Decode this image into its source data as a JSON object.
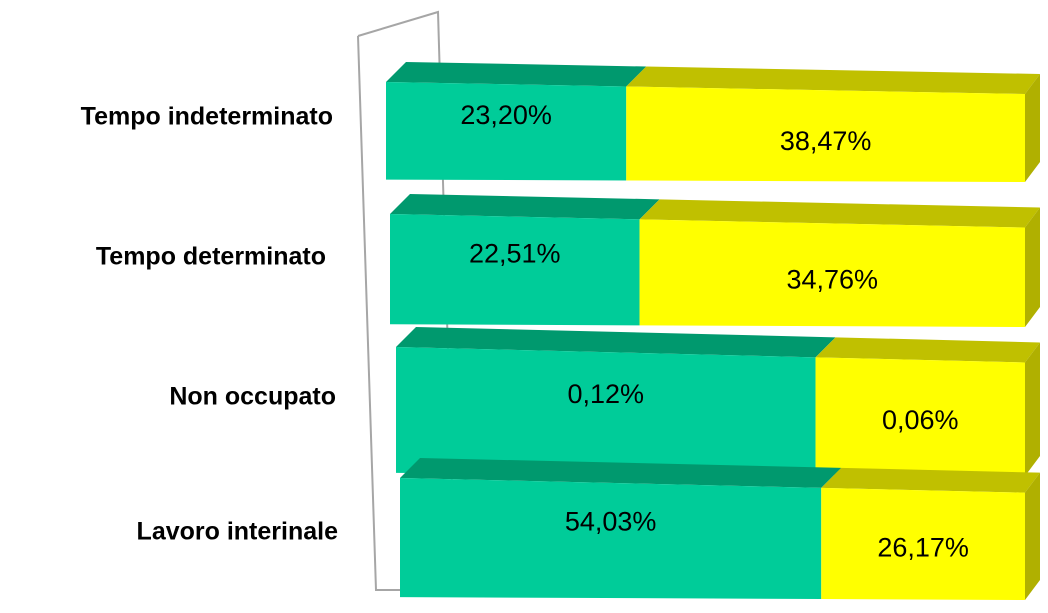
{
  "chart_data": {
    "type": "bar",
    "orientation": "horizontal",
    "stacked": "100%",
    "three_d": true,
    "categories": [
      "Tempo indeterminato",
      "Tempo determinato",
      "Non occupato",
      "Lavoro interinale"
    ],
    "series": [
      {
        "values": [
          23.2,
          22.51,
          0.12,
          54.03
        ],
        "labels": [
          "23,20%",
          "22,51%",
          "0,12%",
          "54,03%"
        ]
      },
      {
        "values": [
          38.47,
          34.76,
          0.06,
          26.17
        ],
        "labels": [
          "38,47%",
          "34,76%",
          "0,06%",
          "26,17%"
        ]
      }
    ],
    "segment_shares": [
      [
        0.376,
        0.624
      ],
      [
        0.393,
        0.607
      ],
      [
        0.667,
        0.333
      ],
      [
        0.674,
        0.326
      ]
    ],
    "colors": {
      "series1_front": "#00cc99",
      "series1_top": "#00996e",
      "series2_front": "#ffff00",
      "series2_top": "#c0c000",
      "series2_side": "#b0b000",
      "axis": "#a6a6a6"
    },
    "legend": "none",
    "grid": false
  }
}
